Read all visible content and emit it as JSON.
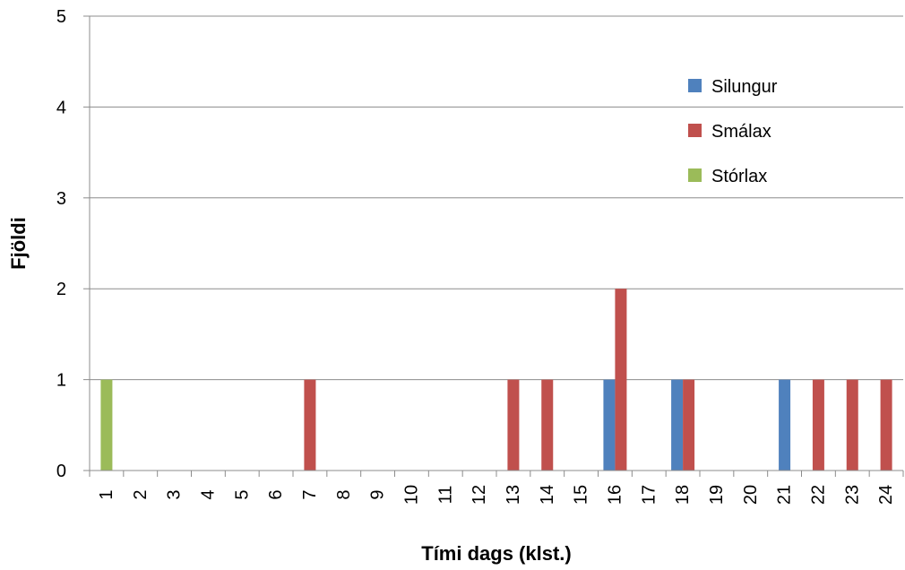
{
  "chart_data": {
    "type": "bar",
    "title": "",
    "xlabel": "Tími dags (klst.)",
    "ylabel": "Fjöldi",
    "ylim": [
      0,
      5
    ],
    "yticks": [
      0,
      1,
      2,
      3,
      4,
      5
    ],
    "grid": "horizontal",
    "legend_position": "right",
    "categories": [
      "1",
      "2",
      "3",
      "4",
      "5",
      "6",
      "7",
      "8",
      "9",
      "10",
      "11",
      "12",
      "13",
      "14",
      "15",
      "16",
      "17",
      "18",
      "19",
      "20",
      "21",
      "22",
      "23",
      "24"
    ],
    "series": [
      {
        "name": "Silungur",
        "color": "#4F81BD",
        "values": [
          0,
          0,
          0,
          0,
          0,
          0,
          0,
          0,
          0,
          0,
          0,
          0,
          0,
          0,
          0,
          1,
          0,
          1,
          0,
          0,
          1,
          0,
          0,
          0
        ]
      },
      {
        "name": "Smálax",
        "color": "#C0504D",
        "values": [
          0,
          0,
          0,
          0,
          0,
          0,
          1,
          0,
          0,
          0,
          0,
          0,
          1,
          1,
          0,
          2,
          0,
          1,
          0,
          0,
          0,
          1,
          1,
          1
        ]
      },
      {
        "name": "Stórlax",
        "color": "#9BBB59",
        "values": [
          1,
          0,
          0,
          0,
          0,
          0,
          0,
          0,
          0,
          0,
          0,
          0,
          0,
          0,
          0,
          0,
          0,
          0,
          0,
          0,
          0,
          0,
          0,
          0
        ]
      }
    ]
  }
}
